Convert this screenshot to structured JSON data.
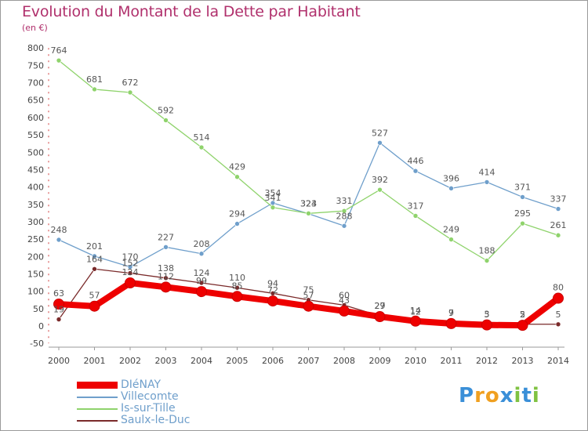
{
  "chart_data": {
    "type": "line",
    "title": "Evolution du Montant de la Dette par Habitant",
    "subtitle": "(en €)",
    "xlabel": "",
    "ylabel": "",
    "categories": [
      "2000",
      "2001",
      "2002",
      "2003",
      "2004",
      "2005",
      "2006",
      "2007",
      "2008",
      "2009",
      "2010",
      "2011",
      "2012",
      "2013",
      "2014"
    ],
    "ylim": [
      -50,
      800
    ],
    "yticks": [
      "-50",
      "0",
      "50",
      "100",
      "150",
      "200",
      "250",
      "300",
      "350",
      "400",
      "450",
      "500",
      "550",
      "600",
      "650",
      "700",
      "750",
      "800"
    ],
    "ytick_values": [
      -50,
      0,
      50,
      100,
      150,
      200,
      250,
      300,
      350,
      400,
      450,
      500,
      550,
      600,
      650,
      700,
      750,
      800
    ],
    "grid": false,
    "legend_position": "bottom-left",
    "series": [
      {
        "name": "DIéNAY",
        "color": "#ee0000",
        "values": [
          63,
          57,
          124,
          112,
          99,
          85,
          72,
          57,
          43,
          27,
          14,
          7,
          3,
          2,
          80
        ],
        "labels": [
          "63",
          "57",
          "124",
          "112",
          "99",
          "85",
          "72",
          "57",
          "43",
          "27",
          "14",
          "7",
          "3",
          "2",
          "80"
        ]
      },
      {
        "name": "Villecomte",
        "color": "#6f9fcb",
        "values": [
          248,
          201,
          170,
          227,
          208,
          294,
          354,
          323,
          288,
          527,
          446,
          396,
          414,
          371,
          337
        ],
        "labels": [
          "248",
          "201",
          "170",
          "227",
          "208",
          "294",
          "354",
          "323",
          "288",
          "527",
          "446",
          "396",
          "414",
          "371",
          "337"
        ]
      },
      {
        "name": "Is-sur-Tille",
        "color": "#8fd36c",
        "values": [
          764,
          681,
          672,
          592,
          514,
          429,
          341,
          324,
          331,
          392,
          317,
          249,
          188,
          295,
          261
        ],
        "labels": [
          "764",
          "681",
          "672",
          "592",
          "514",
          "429",
          "341",
          "324",
          "331",
          "392",
          "317",
          "249",
          "188",
          "295",
          "261"
        ]
      },
      {
        "name": "Saulx-le-Duc",
        "color": "#7a2a2a",
        "values": [
          19,
          164,
          152,
          138,
          124,
          110,
          94,
          75,
          60,
          29,
          12,
          9,
          5,
          5,
          5
        ],
        "labels": [
          "19",
          "164",
          "152",
          "138",
          "124",
          "110",
          "94",
          "75",
          "60",
          "29",
          "12",
          "9",
          "5",
          "5",
          "5"
        ]
      }
    ]
  },
  "logo": {
    "letters": [
      "P",
      "r",
      "o",
      "x",
      "i",
      "t",
      "i"
    ],
    "colors": [
      "#3a8fd8",
      "#f0a020",
      "#f0a020",
      "#3a8fd8",
      "#7fc242",
      "#3a8fd8",
      "#7fc242"
    ]
  }
}
